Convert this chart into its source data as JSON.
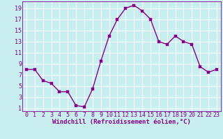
{
  "x": [
    0,
    1,
    2,
    3,
    4,
    5,
    6,
    7,
    8,
    9,
    10,
    11,
    12,
    13,
    14,
    15,
    16,
    17,
    18,
    19,
    20,
    21,
    22,
    23
  ],
  "y": [
    8,
    8,
    6,
    5.5,
    4,
    4,
    1.5,
    1.3,
    4.5,
    9.5,
    14,
    17,
    19,
    19.5,
    18.5,
    17,
    13,
    12.5,
    14,
    13,
    12.5,
    8.5,
    7.5,
    8
  ],
  "line_color": "#880088",
  "marker_color": "#880088",
  "bg_color": "#c8eef0",
  "grid_color": "#ffffff",
  "xlabel": "Windchill (Refroidissement éolien,°C)",
  "xlabel_color": "#880088",
  "tick_color": "#880088",
  "yticks": [
    1,
    3,
    5,
    7,
    9,
    11,
    13,
    15,
    17,
    19
  ],
  "xticks": [
    0,
    1,
    2,
    3,
    4,
    5,
    6,
    7,
    8,
    9,
    10,
    11,
    12,
    13,
    14,
    15,
    16,
    17,
    18,
    19,
    20,
    21,
    22,
    23
  ],
  "ylim": [
    0.5,
    20.2
  ],
  "xlim": [
    -0.5,
    23.5
  ],
  "font_size": 6.0,
  "xlabel_font_size": 6.5,
  "marker_size": 2.2,
  "line_width": 1.0
}
